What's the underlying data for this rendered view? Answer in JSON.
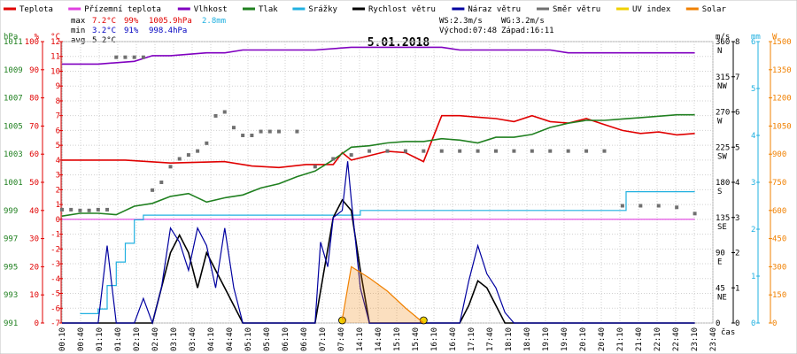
{
  "legend": [
    {
      "label": "Teplota",
      "color": "#e00000"
    },
    {
      "label": "Přízemní teplota",
      "color": "#e040e0"
    },
    {
      "label": "Vlhkost",
      "color": "#8000c0"
    },
    {
      "label": "Tlak",
      "color": "#208020"
    },
    {
      "label": "Srážky",
      "color": "#20b0e0"
    },
    {
      "label": "Rychlost větru",
      "color": "#000000"
    },
    {
      "label": "Náraz větru",
      "color": "#0000a0"
    },
    {
      "label": "Směr větru",
      "color": "#707070"
    },
    {
      "label": "UV index",
      "color": "#f0d000"
    },
    {
      "label": "Solar",
      "color": "#f08000"
    }
  ],
  "stats": {
    "max": {
      "label": "max",
      "temp": "7.2°C",
      "hum": "99%",
      "press": "1005.9hPa",
      "rain": "2.8mm"
    },
    "min": {
      "label": "min",
      "temp": "3.2°C",
      "hum": "91%",
      "press": "998.4hPa"
    },
    "avg": {
      "label": "avg",
      "temp": "5.2°C"
    }
  },
  "wind": {
    "ws": "WS:2.3m/s",
    "wg": "WG:3.2m/s",
    "sunrise": "Východ:07:48",
    "sunset": "Západ:16:11"
  },
  "chart_data": {
    "type": "line",
    "title": "5.01.2018",
    "xlabel": "čas",
    "x_ticks": [
      "00:10",
      "00:40",
      "01:10",
      "01:40",
      "02:10",
      "02:40",
      "03:10",
      "03:40",
      "04:10",
      "04:40",
      "05:10",
      "05:40",
      "06:10",
      "06:40",
      "07:10",
      "07:40",
      "14:10",
      "14:40",
      "15:10",
      "15:40",
      "16:10",
      "16:40",
      "17:10",
      "17:40",
      "18:10",
      "18:40",
      "19:10",
      "19:40",
      "20:10",
      "20:40",
      "21:10",
      "21:40",
      "22:10",
      "22:40",
      "23:10",
      "23:40"
    ],
    "axes": {
      "hpa": {
        "label": "hPa",
        "color": "#208020",
        "ticks": [
          "991",
          "993",
          "995",
          "997",
          "999",
          "1001",
          "1003",
          "1005",
          "1007",
          "1009",
          "1011"
        ]
      },
      "pct": {
        "label": "%",
        "color": "#e00000",
        "ticks": [
          "0",
          "10",
          "20",
          "30",
          "40",
          "50",
          "60",
          "70",
          "80",
          "90",
          "100"
        ]
      },
      "temp": {
        "label": "°C",
        "color": "#e00000",
        "ticks": [
          "-7",
          "-6",
          "-5",
          "-4",
          "-3",
          "-2",
          "-1",
          "0",
          "1",
          "2",
          "3",
          "4",
          "5",
          "6",
          "7",
          "8",
          "9",
          "10",
          "11",
          "12"
        ]
      },
      "dir": {
        "label": "m/s",
        "color": "#000000",
        "ticks": [
          "0",
          "45",
          "90",
          "135",
          "180",
          "225",
          "270",
          "315",
          "360"
        ],
        "names": [
          "",
          "NE",
          "E",
          "SE",
          "S",
          "SW",
          "W",
          "NW",
          "N"
        ]
      },
      "ms": {
        "color": "#000000",
        "ticks": [
          "0",
          "1",
          "2",
          "3",
          "4",
          "5",
          "6",
          "7",
          "8"
        ]
      },
      "mm": {
        "label": "mm",
        "color": "#20b0e0",
        "ticks": [
          "0",
          "1",
          "2",
          "3",
          "4",
          "5",
          "6"
        ]
      },
      "w": {
        "label": "W",
        "color": "#f08000",
        "ticks": [
          "0",
          "150",
          "300",
          "450",
          "600",
          "750",
          "900",
          "1050",
          "1200",
          "1350",
          "1500"
        ]
      }
    },
    "series": [
      {
        "name": "Teplota",
        "color": "#e00000",
        "axis": "temp",
        "x": [
          0,
          3.5,
          6,
          9,
          10.5,
          12,
          13.5,
          15,
          15.5,
          16,
          18,
          19,
          20,
          21,
          22,
          23,
          24,
          25,
          26,
          27,
          28,
          29,
          30,
          31,
          32,
          33,
          34,
          35
        ],
        "y": [
          4,
          4,
          3.8,
          3.9,
          3.6,
          3.5,
          3.7,
          3.7,
          4.5,
          4,
          4.6,
          4.5,
          3.9,
          7,
          7,
          6.9,
          6.8,
          6.6,
          7,
          6.6,
          6.5,
          6.8,
          6.4,
          6,
          5.8,
          5.9,
          5.7,
          5.8
        ]
      },
      {
        "name": "Přízemní teplota",
        "color": "#e040e0",
        "axis": "temp",
        "x": [
          0,
          35
        ],
        "y": [
          0,
          0
        ]
      },
      {
        "name": "Vlhkost",
        "color": "#8000c0",
        "axis": "pct",
        "x": [
          0,
          2,
          4,
          5,
          6,
          8,
          9,
          10,
          11,
          12,
          13,
          14,
          16,
          17,
          18,
          19,
          20,
          21,
          22,
          23,
          24,
          25,
          26,
          27,
          28,
          29,
          30,
          31,
          32,
          33,
          34,
          35
        ],
        "y": [
          92,
          92,
          93,
          95,
          95,
          96,
          96,
          97,
          97,
          97,
          97,
          97,
          98,
          98,
          98,
          98,
          98,
          98,
          97,
          97,
          97,
          97,
          97,
          97,
          96,
          96,
          96,
          96,
          96,
          96,
          96,
          96
        ]
      },
      {
        "name": "Tlak",
        "color": "#208020",
        "axis": "hpa",
        "x": [
          0,
          1,
          2,
          3,
          4,
          5,
          6,
          7,
          8,
          9,
          10,
          11,
          12,
          13,
          14,
          15,
          16,
          17,
          18,
          19,
          20,
          21,
          22,
          23,
          24,
          25,
          26,
          27,
          28,
          29,
          30,
          31,
          32,
          33,
          34,
          35
        ],
        "y": [
          998.6,
          998.8,
          998.8,
          998.7,
          999.3,
          999.5,
          1000,
          1000.2,
          999.6,
          999.9,
          1000.1,
          1000.6,
          1000.9,
          1001.4,
          1001.8,
          1002.6,
          1003.5,
          1003.6,
          1003.8,
          1003.9,
          1003.9,
          1004.1,
          1004.0,
          1003.8,
          1004.2,
          1004.2,
          1004.4,
          1004.9,
          1005.2,
          1005.4,
          1005.4,
          1005.5,
          1005.6,
          1005.7,
          1005.8,
          1005.8
        ]
      },
      {
        "name": "Srážky",
        "color": "#20b0e0",
        "axis": "mm",
        "x": [
          1,
          2,
          2.5,
          3,
          3.5,
          4,
          4.5,
          16,
          16.5,
          31,
          31.2,
          35
        ],
        "y": [
          0.2,
          0.3,
          0.8,
          1.3,
          1.7,
          2.2,
          2.3,
          2.3,
          2.4,
          2.4,
          2.8,
          2.8
        ]
      },
      {
        "name": "Rychlost větru",
        "color": "#000000",
        "axis": "ms",
        "x": [
          0,
          2,
          3,
          4,
          5,
          5.5,
          6,
          6.5,
          7,
          7.5,
          8,
          8.5,
          9,
          9.5,
          10,
          14,
          14.5,
          15,
          15.5,
          16,
          16.5,
          17,
          22,
          22.5,
          23,
          23.5,
          24,
          24.5,
          25,
          35
        ],
        "y": [
          0,
          0,
          0,
          0,
          0,
          1,
          2,
          2.5,
          2,
          1,
          2,
          1.5,
          1,
          0.5,
          0,
          0,
          1.5,
          3,
          3.5,
          3.2,
          1.5,
          0,
          0,
          0.5,
          1.2,
          1,
          0.5,
          0,
          0,
          0
        ]
      },
      {
        "name": "Náraz větru",
        "color": "#0000a0",
        "axis": "ms",
        "x": [
          0,
          2,
          2.5,
          3,
          4,
          4.5,
          5,
          5.5,
          6,
          6.5,
          7,
          7.5,
          8,
          8.5,
          9,
          9.5,
          10,
          14,
          14.3,
          14.7,
          15,
          15.5,
          15.8,
          16,
          16.5,
          17,
          22,
          22.5,
          23,
          23.5,
          24,
          24.5,
          25,
          35
        ],
        "y": [
          0,
          0,
          2.2,
          0,
          0,
          0.7,
          0,
          1,
          2.7,
          2.3,
          1.5,
          2.7,
          2.2,
          1,
          2.7,
          1,
          0,
          0,
          2.3,
          1.6,
          3,
          3.2,
          4.6,
          3.5,
          1,
          0,
          0,
          1.2,
          2.2,
          1.4,
          1,
          0.3,
          0,
          0
        ]
      },
      {
        "name": "Směr větru",
        "color": "#707070",
        "axis": "dir",
        "x": [
          0,
          0.5,
          1,
          1.5,
          2,
          2.5,
          3,
          3.5,
          4,
          4.5,
          5,
          5.5,
          6,
          6.5,
          7,
          7.5,
          8,
          8.5,
          9,
          9.5,
          10,
          10.5,
          11,
          11.5,
          12,
          13,
          14,
          15,
          16,
          17,
          18,
          19,
          20,
          21,
          22,
          23,
          24,
          25,
          26,
          27,
          28,
          29,
          30,
          31,
          32,
          33,
          34,
          35
        ],
        "y": [
          145,
          145,
          144,
          144,
          145,
          145,
          340,
          340,
          340,
          340,
          170,
          180,
          200,
          210,
          215,
          220,
          230,
          265,
          270,
          250,
          240,
          240,
          245,
          245,
          245,
          245,
          200,
          210,
          215,
          220,
          220,
          220,
          220,
          220,
          220,
          220,
          220,
          220,
          220,
          220,
          220,
          220,
          220,
          150,
          150,
          150,
          148,
          140
        ]
      },
      {
        "name": "UV index",
        "color": "#f0d000",
        "axis": "w",
        "x": [
          15.5,
          20
        ],
        "y": [
          40,
          40
        ]
      },
      {
        "name": "Solar",
        "color": "#f08000",
        "axis": "w",
        "x": [
          15.5,
          16,
          17,
          18,
          19,
          20
        ],
        "y": [
          20,
          300,
          240,
          170,
          80,
          0
        ]
      }
    ]
  }
}
